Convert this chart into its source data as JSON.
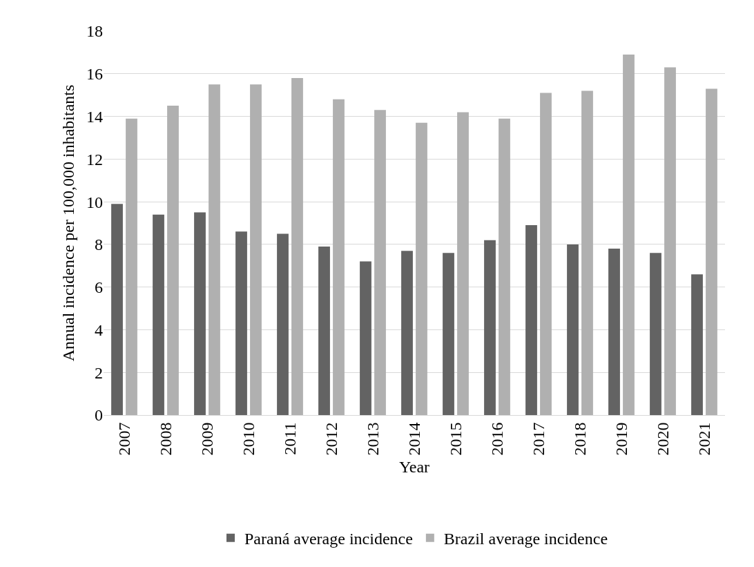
{
  "chart_data": {
    "type": "bar",
    "xlabel": "Year",
    "ylabel": "Annual incidence per 100,000 inhabitants",
    "categories": [
      "2007",
      "2008",
      "2009",
      "2010",
      "2011",
      "2012",
      "2013",
      "2014",
      "2015",
      "2016",
      "2017",
      "2018",
      "2019",
      "2020",
      "2021"
    ],
    "series": [
      {
        "name": "Paraná average incidence",
        "color": "#636363",
        "values": [
          9.9,
          9.4,
          9.5,
          8.6,
          8.5,
          7.9,
          7.2,
          7.7,
          7.6,
          8.2,
          8.9,
          8.0,
          7.8,
          7.6,
          6.6
        ]
      },
      {
        "name": "Brazil average incidence",
        "color": "#b0b0b0",
        "values": [
          13.9,
          14.5,
          15.5,
          15.5,
          15.8,
          14.8,
          14.3,
          13.7,
          14.2,
          13.9,
          15.1,
          15.2,
          16.9,
          16.3,
          15.3
        ]
      }
    ],
    "ylim": [
      0,
      18
    ],
    "yticks": [
      0,
      2,
      4,
      6,
      8,
      10,
      12,
      14,
      16,
      18
    ],
    "grid": "y",
    "legend": "bottom"
  }
}
